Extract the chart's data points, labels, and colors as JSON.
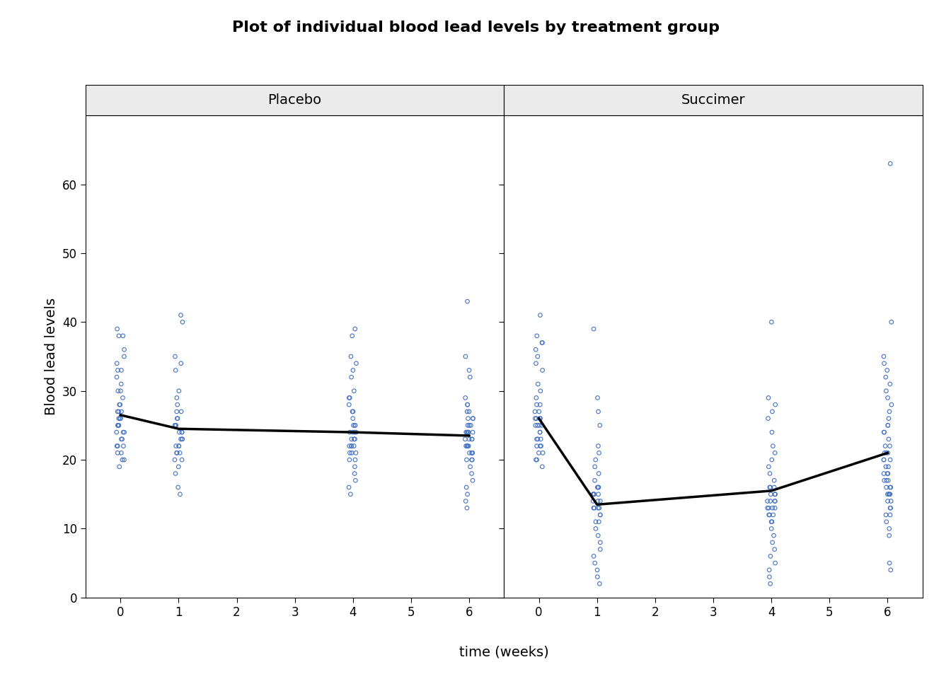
{
  "title": "Plot of individual blood lead levels by treatment group",
  "xlabel": "time (weeks)",
  "ylabel": "Blood lead levels",
  "panels": [
    "Placebo",
    "Succimer"
  ],
  "ylim": [
    0,
    70
  ],
  "yticks": [
    0,
    10,
    20,
    30,
    40,
    50,
    60
  ],
  "xticks": [
    0,
    1,
    2,
    3,
    4,
    5,
    6
  ],
  "time_points": [
    0,
    1,
    4,
    6
  ],
  "placebo_data": {
    "0": [
      19,
      20,
      20,
      21,
      21,
      22,
      22,
      22,
      23,
      23,
      24,
      24,
      24,
      25,
      25,
      25,
      25,
      26,
      26,
      26,
      27,
      27,
      27,
      28,
      28,
      29,
      30,
      30,
      31,
      32,
      33,
      33,
      34,
      35,
      36,
      38,
      38,
      39
    ],
    "1": [
      15,
      16,
      18,
      19,
      20,
      20,
      21,
      21,
      21,
      22,
      22,
      22,
      23,
      23,
      23,
      24,
      24,
      24,
      25,
      25,
      25,
      26,
      26,
      27,
      27,
      28,
      29,
      30,
      33,
      34,
      35,
      40,
      41
    ],
    "4": [
      15,
      16,
      17,
      18,
      19,
      20,
      20,
      21,
      21,
      21,
      22,
      22,
      22,
      22,
      23,
      23,
      23,
      24,
      24,
      24,
      24,
      25,
      25,
      25,
      26,
      27,
      27,
      28,
      29,
      29,
      30,
      32,
      33,
      34,
      35,
      38,
      39
    ],
    "6": [
      13,
      14,
      15,
      16,
      17,
      18,
      19,
      20,
      20,
      20,
      21,
      21,
      21,
      21,
      22,
      22,
      22,
      22,
      23,
      23,
      23,
      23,
      24,
      24,
      24,
      24,
      24,
      25,
      25,
      25,
      26,
      26,
      26,
      27,
      27,
      28,
      28,
      29,
      32,
      33,
      35,
      43
    ]
  },
  "placebo_means": {
    "0": 26.5,
    "1": 24.5,
    "4": 24.0,
    "6": 23.5
  },
  "succimer_data": {
    "0": [
      19,
      20,
      20,
      21,
      21,
      22,
      22,
      22,
      23,
      23,
      23,
      24,
      24,
      25,
      25,
      25,
      25,
      26,
      26,
      26,
      26,
      27,
      27,
      28,
      28,
      29,
      30,
      31,
      33,
      34,
      35,
      36,
      37,
      37,
      38,
      41
    ],
    "1": [
      2,
      3,
      4,
      5,
      6,
      7,
      8,
      9,
      10,
      11,
      11,
      12,
      12,
      13,
      13,
      13,
      13,
      14,
      14,
      14,
      15,
      15,
      15,
      15,
      16,
      16,
      16,
      17,
      18,
      19,
      20,
      21,
      22,
      25,
      27,
      29,
      39
    ],
    "4": [
      2,
      3,
      4,
      5,
      6,
      7,
      8,
      9,
      10,
      11,
      11,
      12,
      12,
      12,
      13,
      13,
      13,
      13,
      14,
      14,
      14,
      14,
      15,
      15,
      15,
      15,
      16,
      16,
      16,
      17,
      18,
      19,
      20,
      21,
      22,
      24,
      26,
      27,
      28,
      29,
      40
    ],
    "6": [
      4,
      5,
      9,
      10,
      11,
      12,
      12,
      13,
      13,
      14,
      14,
      15,
      15,
      15,
      15,
      16,
      16,
      16,
      17,
      17,
      17,
      18,
      18,
      18,
      19,
      19,
      20,
      20,
      20,
      21,
      21,
      21,
      22,
      22,
      23,
      24,
      24,
      25,
      25,
      26,
      27,
      28,
      29,
      30,
      31,
      32,
      33,
      34,
      35,
      40,
      63
    ]
  },
  "succimer_means": {
    "0": 26.0,
    "1": 13.5,
    "4": 15.5,
    "6": 21.0
  },
  "dot_color": "#4472C4",
  "mean_line_color": "black",
  "strip_bg_color": "#ebebeb",
  "dot_size": 4,
  "mean_lw": 2.5,
  "title_fontsize": 16,
  "label_fontsize": 14,
  "tick_fontsize": 12,
  "strip_fontsize": 14
}
